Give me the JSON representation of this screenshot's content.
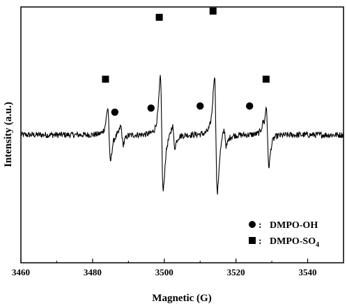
{
  "chart_data": {
    "type": "line",
    "xlabel": "Magnetic (G)",
    "ylabel": "Intensity (a.u.)",
    "xlim": [
      3460,
      3550
    ],
    "x_ticks": [
      3460,
      3480,
      3500,
      3520,
      3540
    ],
    "x_tick_labels": [
      "3460",
      "3480",
      "3500",
      "3520",
      "3540"
    ],
    "ylim": [
      -0.62,
      0.62
    ],
    "y_ticks_shown": false,
    "grid": false,
    "legend_position": "bottom-right",
    "line_color": "#000000",
    "spectrum_shape": {
      "baseline": 0.0,
      "noise_amplitude": 0.015,
      "peaks": [
        {
          "center": 3484.6,
          "amplitude": 0.26,
          "width": 0.65
        },
        {
          "center": 3488.2,
          "amplitude": 0.09,
          "width": 0.6
        },
        {
          "center": 3499.3,
          "amplitude": 0.55,
          "width": 0.7
        },
        {
          "center": 3502.6,
          "amplitude": 0.11,
          "width": 0.6
        },
        {
          "center": 3514.4,
          "amplitude": 0.57,
          "width": 0.7
        },
        {
          "center": 3517.0,
          "amplitude": 0.09,
          "width": 0.6
        },
        {
          "center": 3528.8,
          "amplitude": 0.3,
          "width": 0.65
        },
        {
          "center": 3527.8,
          "amplitude": 0.05,
          "width": 0.5
        }
      ]
    },
    "markers": [
      {
        "x": 3483.6,
        "y": 0.27,
        "shape": "square",
        "series": "DMPO-SO4"
      },
      {
        "x": 3498.6,
        "y": 0.57,
        "shape": "square",
        "series": "DMPO-SO4"
      },
      {
        "x": 3513.6,
        "y": 0.6,
        "shape": "square",
        "series": "DMPO-SO4"
      },
      {
        "x": 3528.4,
        "y": 0.27,
        "shape": "square",
        "series": "DMPO-SO4"
      },
      {
        "x": 3486.2,
        "y": 0.11,
        "shape": "circle",
        "series": "DMPO-OH"
      },
      {
        "x": 3496.3,
        "y": 0.13,
        "shape": "circle",
        "series": "DMPO-OH"
      },
      {
        "x": 3510.0,
        "y": 0.14,
        "shape": "circle",
        "series": "DMPO-OH"
      },
      {
        "x": 3523.8,
        "y": 0.14,
        "shape": "circle",
        "series": "DMPO-OH"
      }
    ],
    "legend": [
      {
        "shape": "circle",
        "separator": ":",
        "label": "DMPO-OH",
        "label_main": "DMPO-OH",
        "label_sub": ""
      },
      {
        "shape": "square",
        "separator": ":",
        "label": "DMPO-SO4",
        "label_main": "DMPO-SO",
        "label_sub": "4"
      }
    ]
  }
}
